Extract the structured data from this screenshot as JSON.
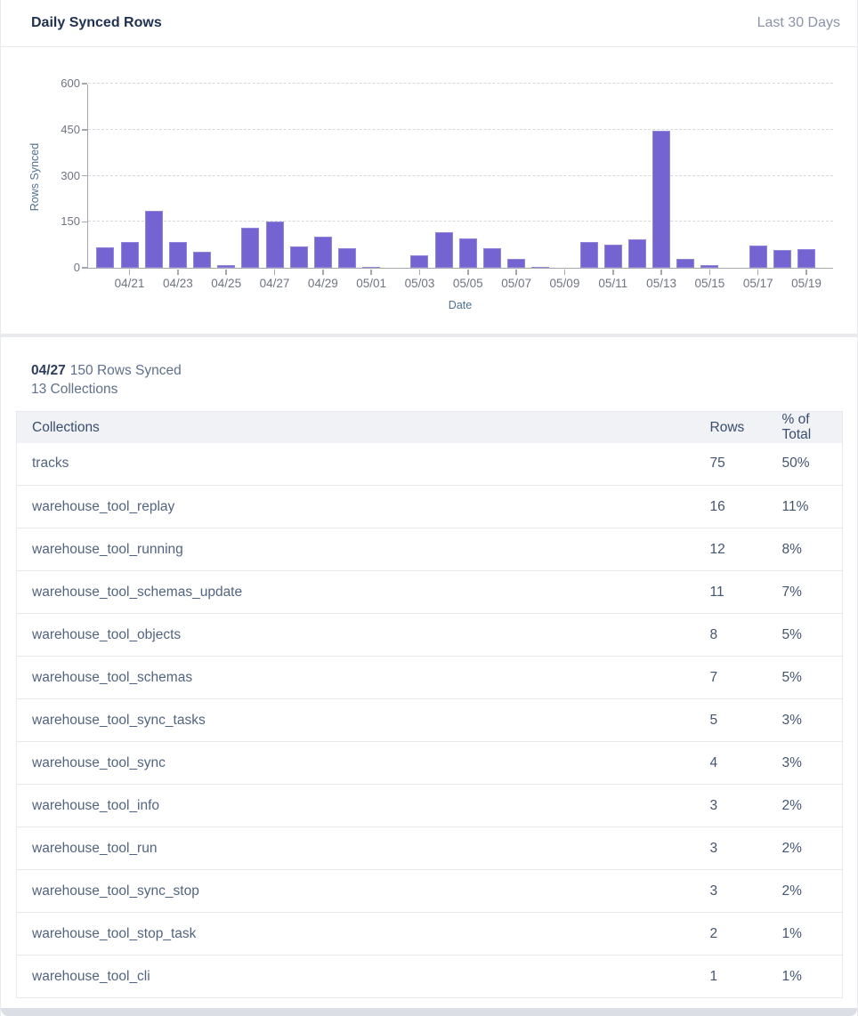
{
  "header": {
    "title": "Daily Synced Rows",
    "range_label": "Last 30 Days"
  },
  "chart_data": {
    "type": "bar",
    "title": "",
    "xlabel": "Date",
    "ylabel": "Rows Synced",
    "ylim": [
      0,
      600
    ],
    "yticks": [
      0,
      150,
      300,
      450,
      600
    ],
    "grid": "horizontal-dashed",
    "legend": "none",
    "bar_color": "#7464d2",
    "x_tick_start_index": 1,
    "x_tick_every": 2,
    "categories": [
      "04/20",
      "04/21",
      "04/22",
      "04/23",
      "04/24",
      "04/25",
      "04/26",
      "04/27",
      "04/28",
      "04/29",
      "04/30",
      "05/01",
      "05/02",
      "05/03",
      "05/04",
      "05/05",
      "05/06",
      "05/07",
      "05/08",
      "05/09",
      "05/10",
      "05/11",
      "05/12",
      "05/13",
      "05/14",
      "05/15",
      "05/16",
      "05/17",
      "05/18",
      "05/19"
    ],
    "values": [
      68,
      84,
      185,
      84,
      52,
      9,
      130,
      150,
      70,
      100,
      65,
      3,
      0,
      40,
      117,
      95,
      65,
      30,
      4,
      0,
      85,
      75,
      92,
      445,
      29,
      8,
      0,
      72,
      58,
      61
    ]
  },
  "detail": {
    "date": "04/27",
    "rows_synced": "150 Rows Synced",
    "collections": "13 Collections"
  },
  "table": {
    "columns": [
      "Collections",
      "Rows",
      "% of Total"
    ],
    "rows": [
      {
        "collection": "tracks",
        "rows": "75",
        "pct": "50%"
      },
      {
        "collection": "warehouse_tool_replay",
        "rows": "16",
        "pct": "11%"
      },
      {
        "collection": "warehouse_tool_running",
        "rows": "12",
        "pct": "8%"
      },
      {
        "collection": "warehouse_tool_schemas_update",
        "rows": "11",
        "pct": "7%"
      },
      {
        "collection": "warehouse_tool_objects",
        "rows": "8",
        "pct": "5%"
      },
      {
        "collection": "warehouse_tool_schemas",
        "rows": "7",
        "pct": "5%"
      },
      {
        "collection": "warehouse_tool_sync_tasks",
        "rows": "5",
        "pct": "3%"
      },
      {
        "collection": "warehouse_tool_sync",
        "rows": "4",
        "pct": "3%"
      },
      {
        "collection": "warehouse_tool_info",
        "rows": "3",
        "pct": "2%"
      },
      {
        "collection": "warehouse_tool_run",
        "rows": "3",
        "pct": "2%"
      },
      {
        "collection": "warehouse_tool_sync_stop",
        "rows": "3",
        "pct": "2%"
      },
      {
        "collection": "warehouse_tool_stop_task",
        "rows": "2",
        "pct": "1%"
      },
      {
        "collection": "warehouse_tool_cli",
        "rows": "1",
        "pct": "1%"
      }
    ]
  },
  "colors": {
    "accent_bar": "#7464d2",
    "title_text": "#1e3151",
    "muted_text": "#8b93a7",
    "axis_label_text": "#4e7191",
    "tick_text": "#6f7480",
    "table_header_bg": "#f1f2f5",
    "row_border": "#e7e9ed"
  }
}
